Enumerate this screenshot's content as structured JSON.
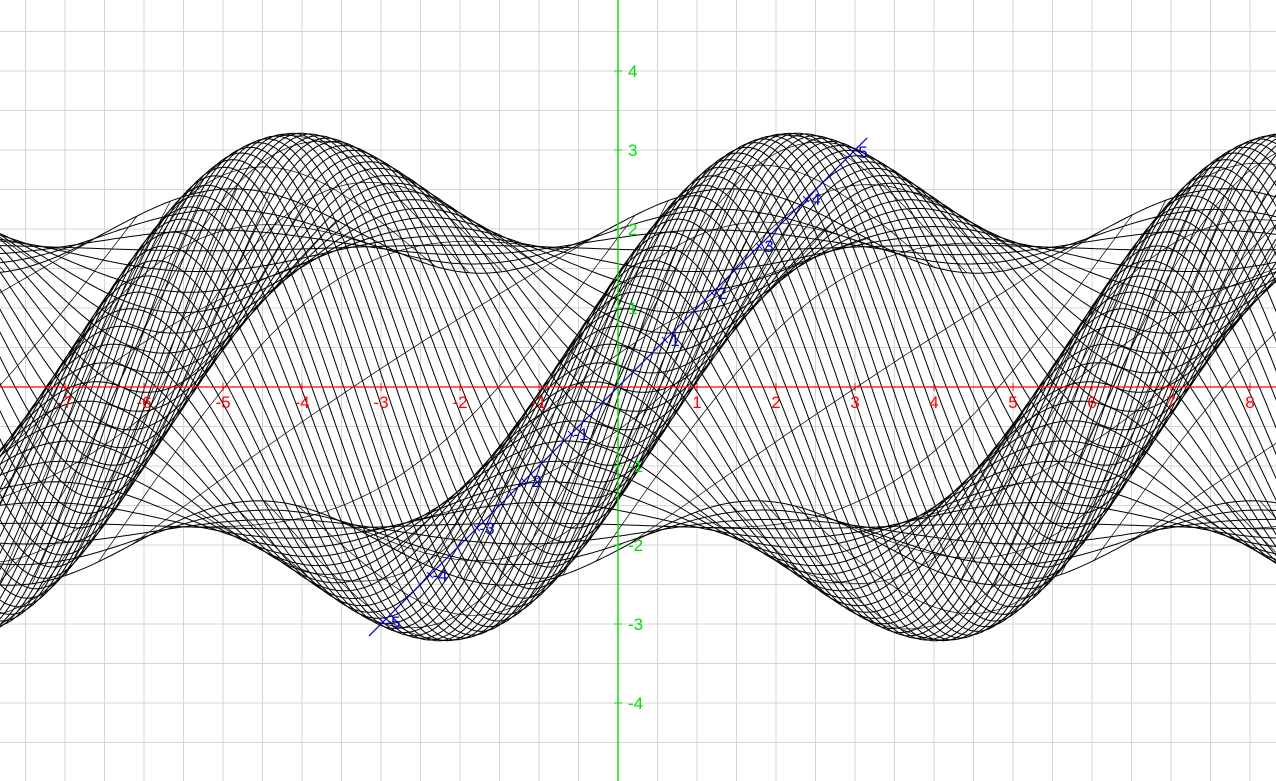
{
  "chart_data": {
    "type": "surface-wireframe",
    "title": "",
    "xlabel": "",
    "ylabel": "",
    "zlabel": "",
    "grid": true,
    "legend": "none",
    "xlim": [
      -7.5,
      8.5
    ],
    "ylim": [
      -4.3,
      4.6
    ],
    "x_ticks": [
      "-7",
      "-6",
      "-5",
      "-4",
      "-3",
      "-2",
      "-1",
      "1",
      "2",
      "3",
      "4",
      "5",
      "6",
      "7",
      "8"
    ],
    "y_ticks": [
      "4",
      "3",
      "2",
      "1",
      "-1",
      "-2",
      "-3",
      "-4"
    ],
    "z_ticks": [
      "5",
      "4",
      "3",
      "2",
      "1",
      "-1",
      "-2",
      "-3",
      "-4",
      "-5"
    ],
    "surface_amplitude": 1.0,
    "surface_period_x": 6.2832,
    "surface_z_range": [
      -5,
      5
    ],
    "colors": {
      "x_axis": "#ff0000",
      "y_axis": "#00dd00",
      "z_axis": "#0000cc",
      "surface": "#000000",
      "grid": "#d6d6d6"
    }
  }
}
